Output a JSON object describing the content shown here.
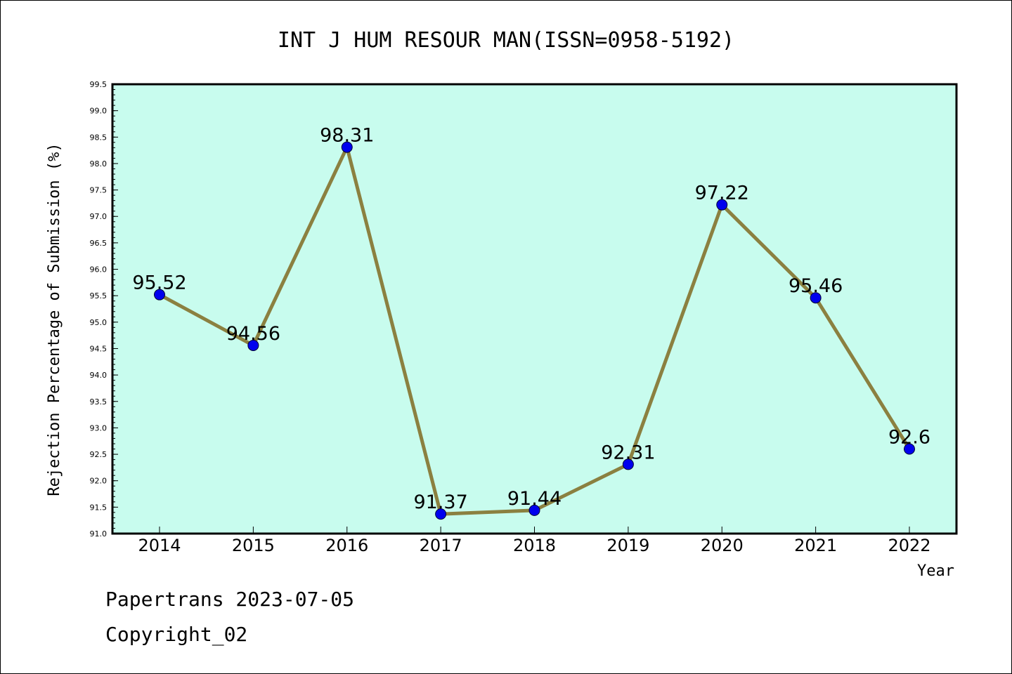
{
  "chart_data": {
    "type": "line",
    "title": "INT J HUM RESOUR MAN(ISSN=0958-5192)",
    "xlabel": "Year",
    "ylabel": "Rejection Percentage of Submission (%)",
    "categories": [
      "2014",
      "2015",
      "2016",
      "2017",
      "2018",
      "2019",
      "2020",
      "2021",
      "2022"
    ],
    "values": [
      95.52,
      94.56,
      98.31,
      91.37,
      91.44,
      92.31,
      97.22,
      95.46,
      92.6
    ],
    "data_labels": [
      "95.52",
      "94.56",
      "98.31",
      "91.37",
      "91.44",
      "92.31",
      "97.22",
      "95.46",
      "92.6"
    ],
    "ylim": [
      91.0,
      99.5
    ],
    "yticks": [
      "91.0",
      "91.5",
      "92.0",
      "92.5",
      "93.0",
      "93.5",
      "94.0",
      "94.5",
      "95.0",
      "95.5",
      "96.0",
      "96.5",
      "97.0",
      "97.5",
      "98.0",
      "98.5",
      "99.0",
      "99.5"
    ],
    "grid": false,
    "colors": {
      "plot_background": "#c8fcee",
      "line": "#8b8040",
      "marker": "#0000ee"
    }
  },
  "footer": {
    "line1": "Papertrans 2023-07-05",
    "line2": "Copyright_02"
  }
}
